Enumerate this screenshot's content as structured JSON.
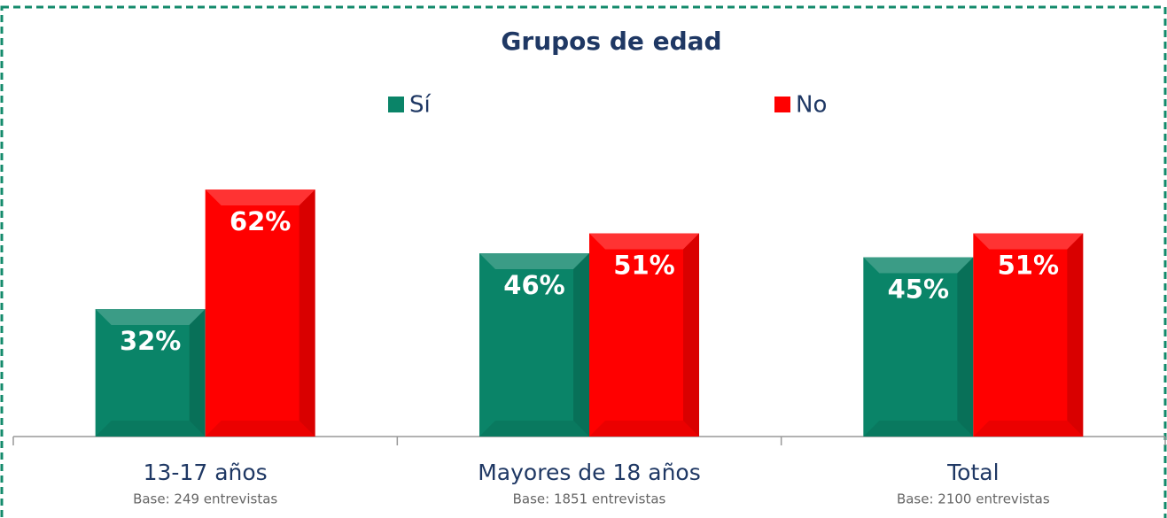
{
  "chart_data": {
    "type": "bar",
    "title": "Grupos de edad",
    "categories": [
      "13-17 años",
      "Mayores de 18 años",
      "Total"
    ],
    "category_notes": [
      "Base: 249 entrevistas",
      "Base: 1851 entrevistas",
      "Base: 2100 entrevistas"
    ],
    "series": [
      {
        "name": "Sí",
        "color": "#0a8468",
        "values": [
          32,
          46,
          45
        ],
        "value_labels": [
          "32%",
          "46%",
          "45%"
        ]
      },
      {
        "name": "No",
        "color": "#ff0000",
        "values": [
          62,
          51,
          51
        ],
        "value_labels": [
          "62%",
          "51%",
          "51%"
        ]
      }
    ],
    "ylim": [
      0,
      70
    ]
  }
}
